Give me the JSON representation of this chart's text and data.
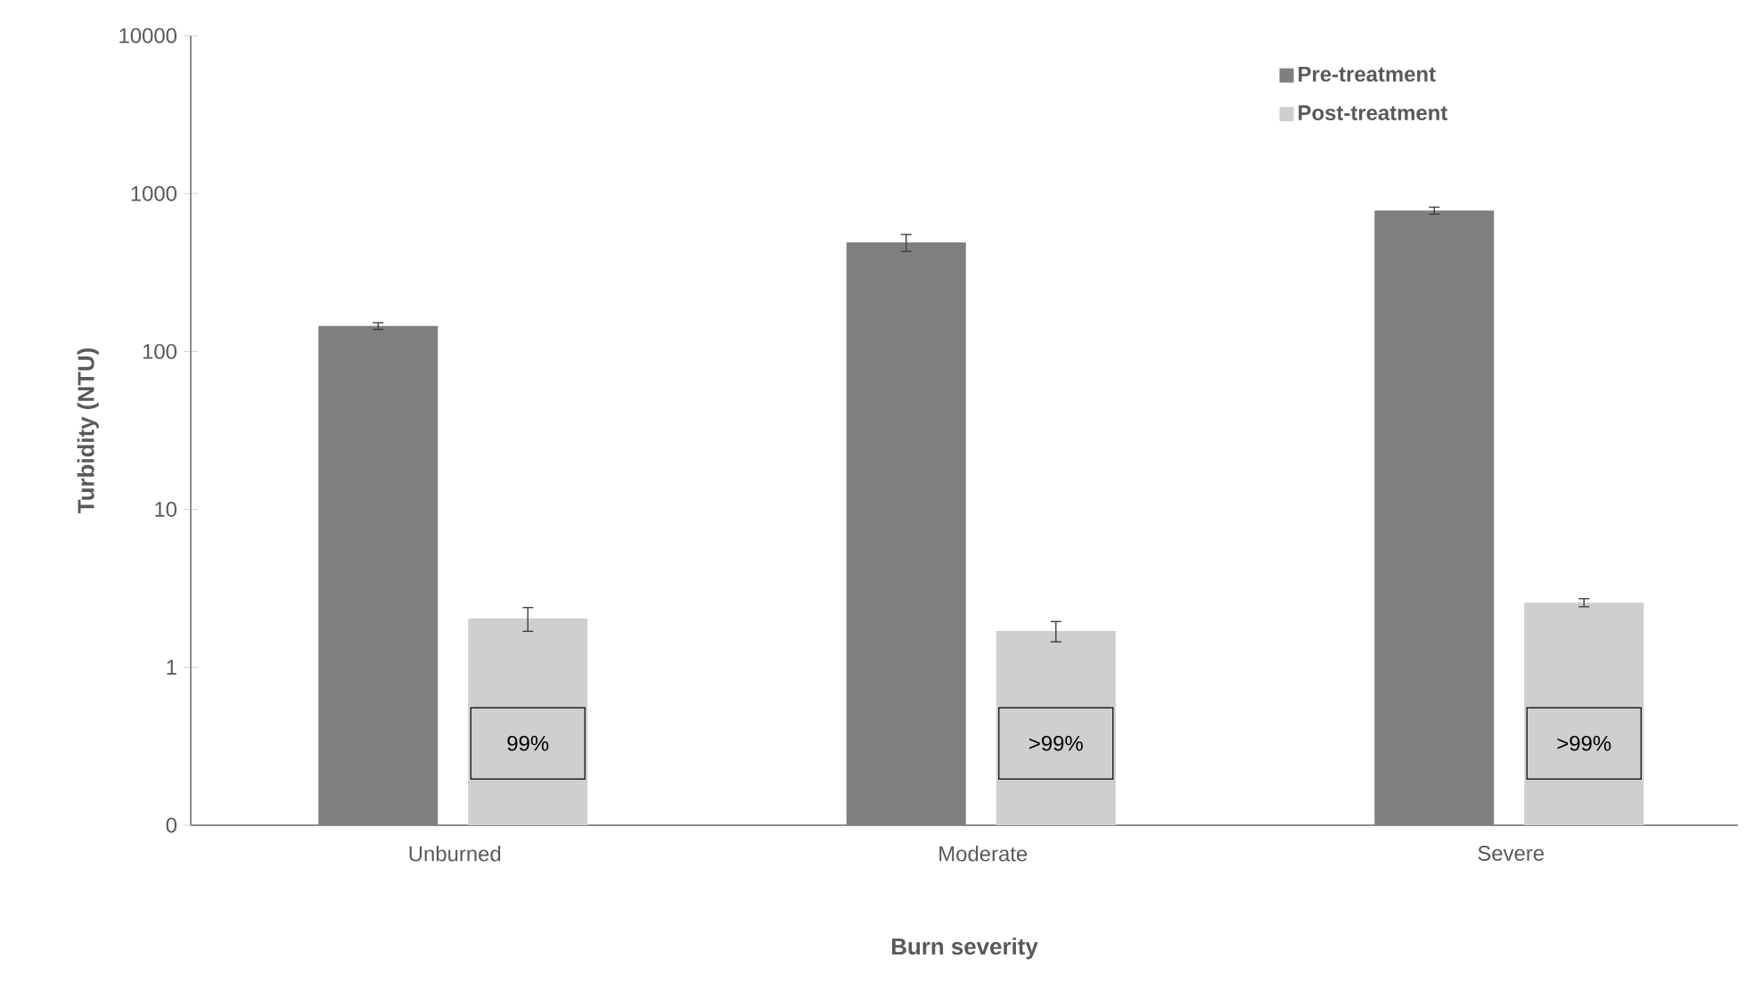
{
  "chart_data": {
    "type": "bar",
    "xlabel": "Burn severity",
    "ylabel": "Turbidity (NTU)",
    "categories": [
      "Unburned",
      "Moderate",
      "Severe"
    ],
    "series": [
      {
        "name": "Pre-treatment",
        "color": "#7f7f7f",
        "values": [
          145,
          490,
          780
        ],
        "errors": [
          7,
          60,
          40
        ]
      },
      {
        "name": "Post-treatment",
        "color": "#d0cece",
        "values": [
          2.04,
          1.7,
          2.57
        ],
        "errors": [
          0.35,
          0.25,
          0.15
        ]
      }
    ],
    "log": "y",
    "ylim": [
      0.1,
      10000
    ],
    "yticks": [
      {
        "value": 0.1,
        "label": "0"
      },
      1,
      10,
      100,
      1000,
      10000
    ],
    "legend": "top right",
    "grid": false,
    "annotations": [
      "99%",
      ">99%",
      ">99%"
    ]
  }
}
